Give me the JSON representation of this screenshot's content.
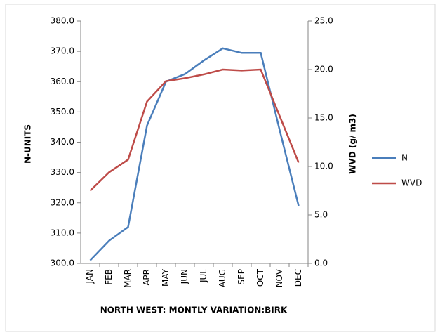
{
  "chart_data": {
    "type": "line",
    "xlabel": "NORTH WEST: MONTLY VARIATION:BIRK",
    "ylabel": "N-UNITS",
    "y2label": "WVD (g/ m3)",
    "categories": [
      "JAN",
      "FEB",
      "MAR",
      "APR",
      "MAY",
      "JUN",
      "JUL",
      "AUG",
      "SEP",
      "OCT",
      "NOV",
      "DEC"
    ],
    "series": [
      {
        "name": "N",
        "color": "#4a7ebb",
        "values": [
          301,
          307.5,
          312,
          345.5,
          360,
          362.5,
          367,
          371,
          369.5,
          369.5,
          344,
          319
        ]
      },
      {
        "name": "WVD",
        "color": "#be4b48",
        "axis": "y2",
        "values": [
          7.5,
          9.4,
          10.7,
          16.7,
          18.8,
          19.1,
          19.5,
          20.0,
          19.9,
          20.0,
          15.2,
          10.4
        ]
      }
    ],
    "ylim": [
      300,
      380
    ],
    "yticks": [
      {
        "value": 300,
        "label": "300.0"
      },
      {
        "value": 310,
        "label": "310.0"
      },
      {
        "value": 320,
        "label": "320.0"
      },
      {
        "value": 330,
        "label": "330.0"
      },
      {
        "value": 340,
        "label": "340.0"
      },
      {
        "value": 350,
        "label": "350.0"
      },
      {
        "value": 360,
        "label": "360.0"
      },
      {
        "value": 370,
        "label": "370.0"
      },
      {
        "value": 380,
        "label": "380.0"
      }
    ],
    "y2lim": [
      0,
      25
    ],
    "y2ticks": [
      {
        "value": 0,
        "label": "0.0"
      },
      {
        "value": 5,
        "label": "5.0"
      },
      {
        "value": 10,
        "label": "10.0"
      },
      {
        "value": 15,
        "label": "15.0"
      },
      {
        "value": 20,
        "label": "20.0"
      },
      {
        "value": 25,
        "label": "25.0"
      }
    ],
    "grid": false,
    "legend": "right"
  }
}
